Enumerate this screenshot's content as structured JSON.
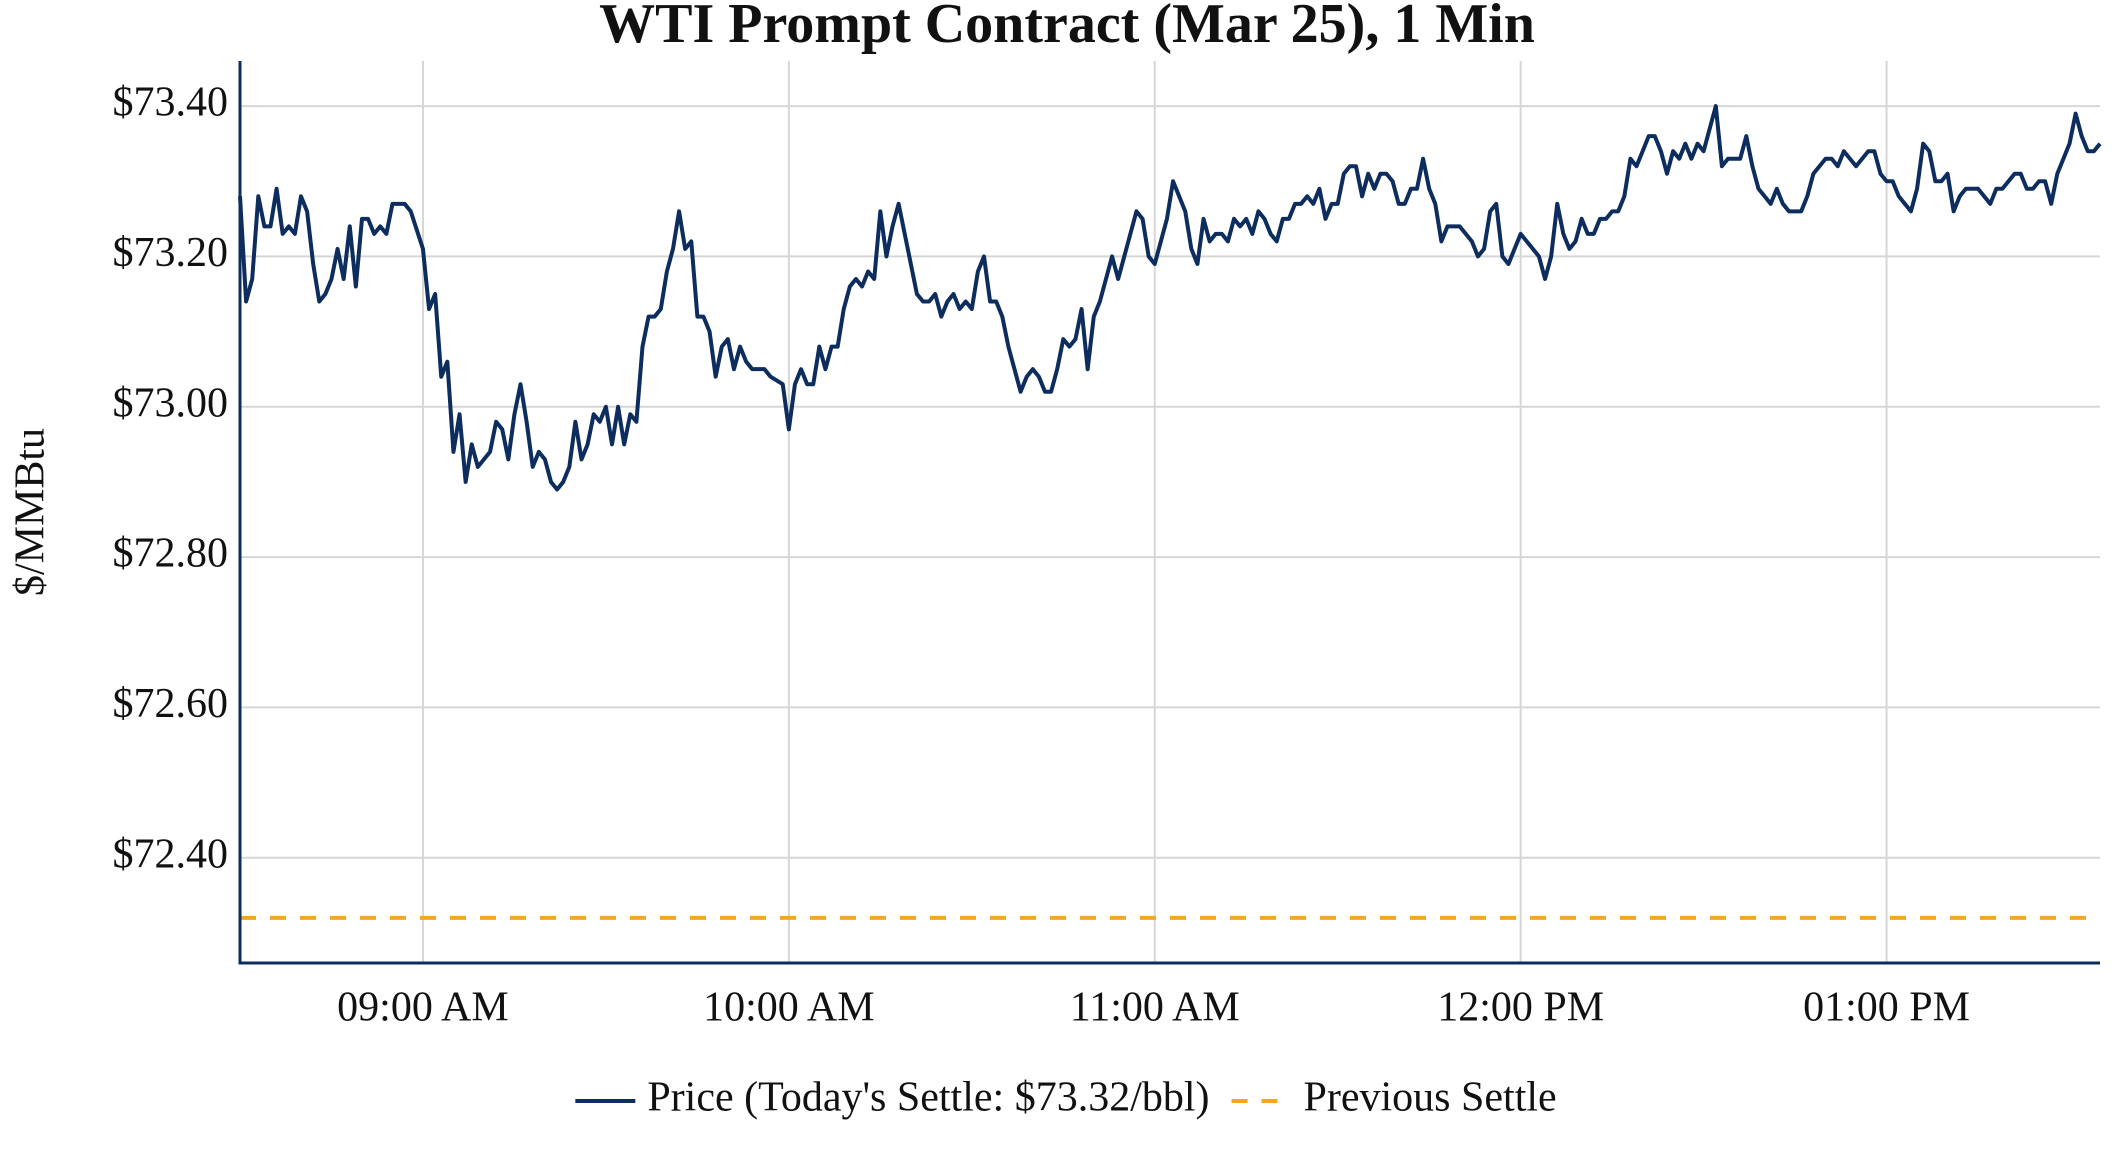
{
  "chart_data": {
    "type": "line",
    "title": "WTI Prompt Contract (Mar 25), 1 Min",
    "y_label": "$/MMBtu",
    "xlim": [
      "08:30",
      "13:35"
    ],
    "xticks": [
      {
        "value": "09:00",
        "label": "09:00 AM"
      },
      {
        "value": "10:00",
        "label": "10:00 AM"
      },
      {
        "value": "11:00",
        "label": "11:00 AM"
      },
      {
        "value": "12:00",
        "label": "12:00 PM"
      },
      {
        "value": "13:00",
        "label": "01:00 PM"
      }
    ],
    "ylim": [
      72.26,
      73.46
    ],
    "yticks": [
      {
        "value": 72.4,
        "label": "$72.40"
      },
      {
        "value": 72.6,
        "label": "$72.60"
      },
      {
        "value": 72.8,
        "label": "$72.80"
      },
      {
        "value": 73.0,
        "label": "$73.00"
      },
      {
        "value": 73.2,
        "label": "$73.20"
      },
      {
        "value": 73.4,
        "label": "$73.40"
      }
    ],
    "grid": true,
    "legend": "bottom",
    "series": [
      {
        "name": "Price (Today's Settle: $73.32/bbl)",
        "color": "#0c2d5e",
        "dash": false,
        "x": [
          "08:30",
          "08:31",
          "08:32",
          "08:33",
          "08:34",
          "08:35",
          "08:36",
          "08:37",
          "08:38",
          "08:39",
          "08:40",
          "08:41",
          "08:42",
          "08:43",
          "08:44",
          "08:45",
          "08:46",
          "08:47",
          "08:48",
          "08:49",
          "08:50",
          "08:51",
          "08:52",
          "08:53",
          "08:54",
          "08:55",
          "08:57",
          "08:58",
          "09:00",
          "09:01",
          "09:02",
          "09:03",
          "09:04",
          "09:05",
          "09:06",
          "09:07",
          "09:08",
          "09:09",
          "09:11",
          "09:12",
          "09:13",
          "09:14",
          "09:15",
          "09:16",
          "09:17",
          "09:18",
          "09:19",
          "09:20",
          "09:21",
          "09:22",
          "09:23",
          "09:24",
          "09:25",
          "09:26",
          "09:27",
          "09:28",
          "09:29",
          "09:30",
          "09:31",
          "09:32",
          "09:33",
          "09:34",
          "09:35",
          "09:36",
          "09:37",
          "09:38",
          "09:39",
          "09:40",
          "09:41",
          "09:42",
          "09:43",
          "09:44",
          "09:45",
          "09:46",
          "09:47",
          "09:48",
          "09:49",
          "09:50",
          "09:51",
          "09:52",
          "09:53",
          "09:54",
          "09:56",
          "09:57",
          "09:59",
          "10:00",
          "10:01",
          "10:02",
          "10:03",
          "10:04",
          "10:05",
          "10:06",
          "10:07",
          "10:08",
          "10:09",
          "10:10",
          "10:11",
          "10:12",
          "10:13",
          "10:14",
          "10:15",
          "10:16",
          "10:17",
          "10:18",
          "10:19",
          "10:20",
          "10:21",
          "10:22",
          "10:23",
          "10:24",
          "10:25",
          "10:26",
          "10:27",
          "10:28",
          "10:29",
          "10:30",
          "10:31",
          "10:32",
          "10:33",
          "10:34",
          "10:35",
          "10:36",
          "10:37",
          "10:38",
          "10:39",
          "10:40",
          "10:41",
          "10:42",
          "10:43",
          "10:44",
          "10:45",
          "10:46",
          "10:47",
          "10:48",
          "10:49",
          "10:50",
          "10:51",
          "10:52",
          "10:53",
          "10:54",
          "10:55",
          "10:56",
          "10:57",
          "10:58",
          "10:59",
          "11:00",
          "11:01",
          "11:02",
          "11:03",
          "11:04",
          "11:05",
          "11:06",
          "11:07",
          "11:08",
          "11:09",
          "11:10",
          "11:11",
          "11:12",
          "11:13",
          "11:14",
          "11:15",
          "11:16",
          "11:17",
          "11:18",
          "11:19",
          "11:20",
          "11:21",
          "11:22",
          "11:23",
          "11:24",
          "11:25",
          "11:26",
          "11:27",
          "11:28",
          "11:29",
          "11:30",
          "11:31",
          "11:32",
          "11:33",
          "11:34",
          "11:35",
          "11:36",
          "11:37",
          "11:38",
          "11:39",
          "11:40",
          "11:41",
          "11:42",
          "11:43",
          "11:44",
          "11:45",
          "11:46",
          "11:47",
          "11:48",
          "11:49",
          "11:50",
          "11:51",
          "11:52",
          "11:53",
          "11:54",
          "11:55",
          "11:56",
          "11:57",
          "11:58",
          "11:59",
          "12:00",
          "12:01",
          "12:02",
          "12:03",
          "12:04",
          "12:05",
          "12:06",
          "12:07",
          "12:08",
          "12:09",
          "12:10",
          "12:11",
          "12:12",
          "12:13",
          "12:14",
          "12:15",
          "12:16",
          "12:17",
          "12:18",
          "12:19",
          "12:20",
          "12:21",
          "12:22",
          "12:23",
          "12:24",
          "12:25",
          "12:26",
          "12:27",
          "12:28",
          "12:29",
          "12:30",
          "12:31",
          "12:32",
          "12:33",
          "12:34",
          "12:35",
          "12:36",
          "12:37",
          "12:38",
          "12:39",
          "12:40",
          "12:41",
          "12:42",
          "12:43",
          "12:44",
          "12:45",
          "12:46",
          "12:47",
          "12:48",
          "12:49",
          "12:50",
          "12:51",
          "12:52",
          "12:53",
          "12:54",
          "12:55",
          "12:56",
          "12:57",
          "12:58",
          "12:59",
          "13:00",
          "13:01",
          "13:02",
          "13:03",
          "13:04",
          "13:05",
          "13:06",
          "13:07",
          "13:08",
          "13:09",
          "13:10",
          "13:11",
          "13:12",
          "13:13",
          "13:14",
          "13:15",
          "13:16",
          "13:17",
          "13:18",
          "13:19",
          "13:20",
          "13:21",
          "13:22",
          "13:23",
          "13:24",
          "13:25",
          "13:26",
          "13:27",
          "13:28",
          "13:29",
          "13:30",
          "13:31",
          "13:32",
          "13:33",
          "13:34",
          "13:35"
        ],
        "values": [
          73.28,
          73.14,
          73.17,
          73.28,
          73.24,
          73.24,
          73.29,
          73.23,
          73.24,
          73.23,
          73.28,
          73.26,
          73.19,
          73.14,
          73.15,
          73.17,
          73.21,
          73.17,
          73.24,
          73.16,
          73.25,
          73.25,
          73.23,
          73.24,
          73.23,
          73.27,
          73.27,
          73.26,
          73.21,
          73.13,
          73.15,
          73.04,
          73.06,
          72.94,
          72.99,
          72.9,
          72.95,
          72.92,
          72.94,
          72.98,
          72.97,
          72.93,
          72.99,
          73.03,
          72.98,
          72.92,
          72.94,
          72.93,
          72.9,
          72.89,
          72.9,
          72.92,
          72.98,
          72.93,
          72.95,
          72.99,
          72.98,
          73.0,
          72.95,
          73.0,
          72.95,
          72.99,
          72.98,
          73.08,
          73.12,
          73.12,
          73.13,
          73.18,
          73.21,
          73.26,
          73.21,
          73.22,
          73.12,
          73.12,
          73.1,
          73.04,
          73.08,
          73.09,
          73.05,
          73.08,
          73.06,
          73.05,
          73.05,
          73.04,
          73.03,
          72.97,
          73.03,
          73.05,
          73.03,
          73.03,
          73.08,
          73.05,
          73.08,
          73.08,
          73.13,
          73.16,
          73.17,
          73.16,
          73.18,
          73.17,
          73.26,
          73.2,
          73.24,
          73.27,
          73.23,
          73.19,
          73.15,
          73.14,
          73.14,
          73.15,
          73.12,
          73.14,
          73.15,
          73.13,
          73.14,
          73.13,
          73.18,
          73.2,
          73.14,
          73.14,
          73.12,
          73.08,
          73.05,
          73.02,
          73.04,
          73.05,
          73.04,
          73.02,
          73.02,
          73.05,
          73.09,
          73.08,
          73.09,
          73.13,
          73.05,
          73.12,
          73.14,
          73.17,
          73.2,
          73.17,
          73.2,
          73.23,
          73.26,
          73.25,
          73.2,
          73.19,
          73.22,
          73.25,
          73.3,
          73.28,
          73.26,
          73.21,
          73.19,
          73.25,
          73.22,
          73.23,
          73.23,
          73.22,
          73.25,
          73.24,
          73.25,
          73.23,
          73.26,
          73.25,
          73.23,
          73.22,
          73.25,
          73.25,
          73.27,
          73.27,
          73.28,
          73.27,
          73.29,
          73.25,
          73.27,
          73.27,
          73.31,
          73.32,
          73.32,
          73.28,
          73.31,
          73.29,
          73.31,
          73.31,
          73.3,
          73.27,
          73.27,
          73.29,
          73.29,
          73.33,
          73.29,
          73.27,
          73.22,
          73.24,
          73.24,
          73.24,
          73.23,
          73.22,
          73.2,
          73.21,
          73.26,
          73.27,
          73.2,
          73.19,
          73.21,
          73.23,
          73.22,
          73.21,
          73.2,
          73.17,
          73.2,
          73.27,
          73.23,
          73.21,
          73.22,
          73.25,
          73.23,
          73.23,
          73.25,
          73.25,
          73.26,
          73.26,
          73.28,
          73.33,
          73.32,
          73.34,
          73.36,
          73.36,
          73.34,
          73.31,
          73.34,
          73.33,
          73.35,
          73.33,
          73.35,
          73.34,
          73.37,
          73.4,
          73.32,
          73.33,
          73.33,
          73.33,
          73.36,
          73.32,
          73.29,
          73.28,
          73.27,
          73.29,
          73.27,
          73.26,
          73.26,
          73.26,
          73.28,
          73.31,
          73.32,
          73.33,
          73.33,
          73.32,
          73.34,
          73.33,
          73.32,
          73.33,
          73.34,
          73.34,
          73.31,
          73.3,
          73.3,
          73.28,
          73.27,
          73.26,
          73.29,
          73.35,
          73.34,
          73.3,
          73.3,
          73.31,
          73.26,
          73.28,
          73.29,
          73.29,
          73.29,
          73.28,
          73.27,
          73.29,
          73.29,
          73.3,
          73.31,
          73.31,
          73.29,
          73.29,
          73.3,
          73.3,
          73.27,
          73.31,
          73.33,
          73.35,
          73.39,
          73.36,
          73.34,
          73.34,
          73.35
        ]
      },
      {
        "name": "Previous Settle",
        "color": "#f5a623",
        "dash": true,
        "x": [
          "08:30",
          "13:35"
        ],
        "values": [
          72.32,
          72.32
        ]
      }
    ]
  }
}
